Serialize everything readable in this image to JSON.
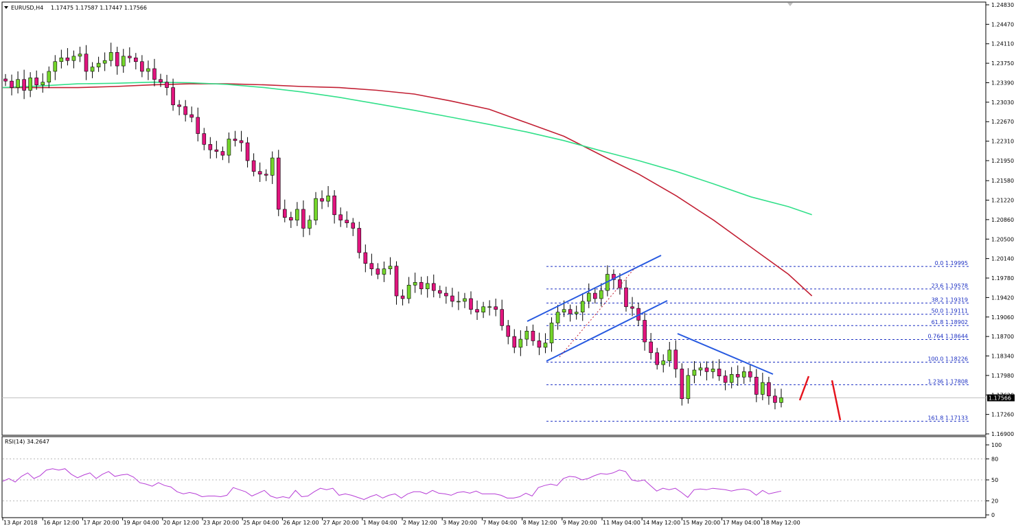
{
  "header": {
    "symbol": "EURUSD,H4",
    "ohlc": "1.17475 1.17587 1.17447 1.17566",
    "rsi_label": "RSI(14) 34.2647"
  },
  "chart_data": [
    {
      "type": "candlestick",
      "title": "EURUSD,H4",
      "ylim": [
        1.169,
        1.2483
      ],
      "y_ticks": [
        "1.24830",
        "1.24470",
        "1.24110",
        "1.23750",
        "1.23390",
        "1.23030",
        "1.22670",
        "1.22310",
        "1.21950",
        "1.21580",
        "1.21220",
        "1.20860",
        "1.20500",
        "1.20140",
        "1.19780",
        "1.19420",
        "1.19060",
        "1.18700",
        "1.18340",
        "1.17980",
        "1.17620",
        "1.17260",
        "1.16900"
      ],
      "x_ticks": [
        "13 Apr 2018",
        "16 Apr 12:00",
        "17 Apr 20:00",
        "19 Apr 04:00",
        "20 Apr 12:00",
        "23 Apr 20:00",
        "25 Apr 04:00",
        "26 Apr 12:00",
        "27 Apr 20:00",
        "1 May 04:00",
        "2 May 12:00",
        "3 May 20:00",
        "7 May 04:00",
        "8 May 12:00",
        "9 May 20:00",
        "11 May 04:00",
        "14 May 12:00",
        "15 May 20:00",
        "17 May 04:00",
        "18 May 12:00"
      ],
      "current_price": "1.17566",
      "price_path": [
        1.2342,
        1.233,
        1.2345,
        1.2325,
        1.2348,
        1.2335,
        1.234,
        1.236,
        1.2378,
        1.2385,
        1.238,
        1.2388,
        1.2392,
        1.236,
        1.2368,
        1.2375,
        1.238,
        1.2395,
        1.237,
        1.2388,
        1.2385,
        1.2378,
        1.236,
        1.2365,
        1.2345,
        1.234,
        1.233,
        1.2298,
        1.2295,
        1.228,
        1.2275,
        1.2245,
        1.2225,
        1.2215,
        1.2212,
        1.2205,
        1.2235,
        1.2232,
        1.2228,
        1.2195,
        1.2175,
        1.217,
        1.2168,
        1.22,
        1.2105,
        1.209,
        1.2085,
        1.2105,
        1.207,
        1.2085,
        1.2125,
        1.212,
        1.213,
        1.2095,
        1.2085,
        1.208,
        1.207,
        1.2025,
        1.2005,
        1.1995,
        1.1985,
        1.1995,
        1.2,
        1.1945,
        1.194,
        1.1965,
        1.197,
        1.1958,
        1.1968,
        1.1955,
        1.195,
        1.1945,
        1.1935,
        1.1935,
        1.194,
        1.192,
        1.1915,
        1.1925,
        1.1925,
        1.192,
        1.189,
        1.187,
        1.185,
        1.1865,
        1.188,
        1.1862,
        1.185,
        1.1858,
        1.1895,
        1.1915,
        1.192,
        1.1912,
        1.1915,
        1.1935,
        1.195,
        1.194,
        1.1955,
        1.1985,
        1.1975,
        1.196,
        1.1925,
        1.1922,
        1.19,
        1.186,
        1.184,
        1.1818,
        1.1825,
        1.1845,
        1.181,
        1.1755,
        1.1798,
        1.1808,
        1.1812,
        1.1805,
        1.181,
        1.1797,
        1.1785,
        1.18,
        1.1795,
        1.1805,
        1.1795,
        1.1763,
        1.1785,
        1.176,
        1.1748,
        1.1757
      ],
      "series": [
        {
          "name": "",
          "color": "#c21f33",
          "values": [
            1.233,
            1.233,
            1.233,
            1.2332,
            1.2335,
            1.2337,
            1.2337,
            1.2335,
            1.2332,
            1.233,
            1.2325,
            1.2318,
            1.2305,
            1.229,
            1.2265,
            1.224,
            1.2205,
            1.217,
            1.213,
            1.2085,
            1.2035,
            1.1985,
            1.1945
          ],
          "x_fraction": [
            0.0,
            0.05,
            0.1,
            0.15,
            0.2,
            0.25,
            0.3,
            0.35,
            0.4,
            0.45,
            0.5,
            0.55,
            0.6,
            0.65,
            0.7,
            0.75,
            0.8,
            0.85,
            0.9,
            0.95,
            1.0,
            1.05,
            1.0814
          ]
        },
        {
          "name": "",
          "color": "#32e08a",
          "values": [
            1.233,
            1.2333,
            1.2337,
            1.2338,
            1.234,
            1.2339,
            1.2336,
            1.233,
            1.2322,
            1.2312,
            1.23,
            1.2288,
            1.2275,
            1.2262,
            1.2248,
            1.2232,
            1.2213,
            1.2195,
            1.2175,
            1.2152,
            1.2128,
            1.211,
            1.2095
          ],
          "x_fraction": [
            0.0,
            0.05,
            0.1,
            0.15,
            0.2,
            0.25,
            0.3,
            0.35,
            0.4,
            0.45,
            0.5,
            0.55,
            0.6,
            0.65,
            0.7,
            0.75,
            0.8,
            0.85,
            0.9,
            0.95,
            1.0,
            1.05,
            1.0814
          ]
        }
      ],
      "fibonacci": [
        {
          "label": "0.0 1.19995",
          "value": 1.19995
        },
        {
          "label": "23.6 1.19578",
          "value": 1.19578
        },
        {
          "label": "38.2 1.19319",
          "value": 1.19319
        },
        {
          "label": "50.0 1.19111",
          "value": 1.19111
        },
        {
          "label": "61.8 1.18902",
          "value": 1.18902
        },
        {
          "label": "0.764 1.18644",
          "value": 1.18644
        },
        {
          "label": "100.0 1.18226",
          "value": 1.18226
        },
        {
          "label": "1.236 1.17808",
          "value": 1.17808
        },
        {
          "label": "161.8 1.17133",
          "value": 1.17133
        }
      ]
    },
    {
      "type": "line",
      "title": "RSI(14) 34.2647",
      "ylim": [
        0,
        100
      ],
      "y_ticks": [
        "100",
        "80",
        "50",
        "20",
        "0"
      ],
      "levels": [
        80,
        50,
        20
      ],
      "values": [
        48,
        52,
        47,
        55,
        60,
        52,
        56,
        64,
        66,
        64,
        66,
        58,
        53,
        57,
        60,
        52,
        58,
        62,
        55,
        57,
        58,
        54,
        46,
        44,
        41,
        46,
        42,
        40,
        33,
        30,
        32,
        30,
        26,
        27,
        27,
        26,
        28,
        39,
        36,
        33,
        27,
        31,
        35,
        27,
        24,
        26,
        24,
        35,
        26,
        27,
        33,
        38,
        36,
        38,
        28,
        30,
        28,
        25,
        22,
        26,
        29,
        24,
        28,
        30,
        24,
        30,
        33,
        33,
        30,
        35,
        31,
        30,
        28,
        32,
        33,
        31,
        34,
        30,
        30,
        30,
        28,
        24,
        24,
        26,
        31,
        27,
        39,
        42,
        44,
        42,
        52,
        55,
        54,
        50,
        52,
        56,
        59,
        58,
        60,
        64,
        62,
        50,
        48,
        50,
        42,
        34,
        38,
        36,
        38,
        32,
        25,
        36,
        37,
        36,
        38,
        37,
        36,
        34,
        36,
        37,
        35,
        28,
        35,
        30,
        32,
        34
      ],
      "color": "#b63cd6"
    }
  ]
}
